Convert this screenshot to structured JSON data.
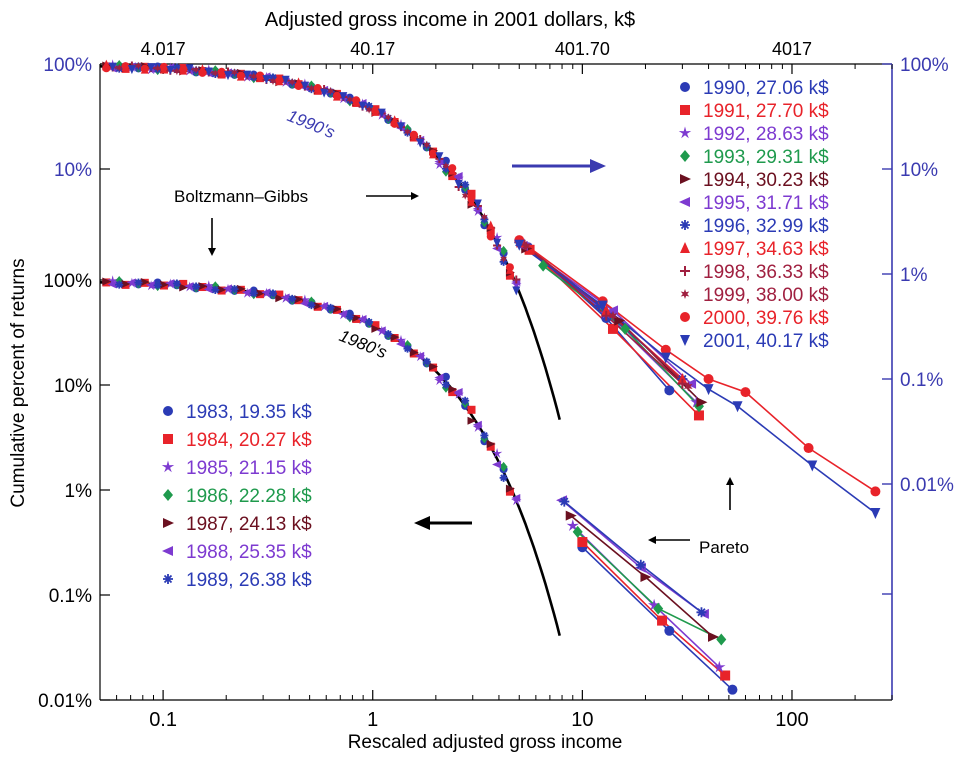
{
  "chart_data": {
    "type": "scatter",
    "title": "Adjusted gross income in 2001 dollars, k$",
    "xlabel": "Rescaled adjusted gross income",
    "ylabel": "Cumulative percent of returns",
    "x_scale": "log",
    "y_scale": "log",
    "xlim": [
      0.05,
      300
    ],
    "x_ticks": [
      "0.1",
      "1",
      "10",
      "100"
    ],
    "x_ticks_values": [
      0.1,
      1,
      10,
      100
    ],
    "top_ticks": [
      "4.017",
      "40.17",
      "401.70",
      "4017"
    ],
    "top_ticks_values": [
      0.1,
      1,
      10,
      100
    ],
    "left_ticks": [
      "100%",
      "10%",
      "1%",
      "0.1%",
      "0.01%"
    ],
    "upper_left_ticks": [
      "100%",
      "10%"
    ],
    "right_ticks": [
      "100%",
      "10%",
      "1%",
      "0.1%",
      "0.01%"
    ],
    "right_ticks_values": [
      100,
      10,
      1,
      0.1,
      0.01
    ],
    "annotations": {
      "decade_1990": "1990's",
      "decade_1980": "1980's",
      "bg_label": "Boltzmann–Gibbs",
      "pareto_label": "Pareto"
    },
    "colors": {
      "axis_left": "#000000",
      "axis_right": "#3a3ab0",
      "fit": "#000000",
      "arrow_right": "#3a3ab0"
    },
    "boltzmann_gibbs": {
      "formula": "exp(-x)",
      "upper_x_range": [
        0.05,
        7.8
      ],
      "lower_x_range": [
        0.05,
        7.8
      ]
    },
    "series_1990s": [
      {
        "name": "1990, 27.06 k$",
        "color": "#2b3bb5",
        "marker": "circle",
        "pareto_x": [
          5.5,
          13,
          26
        ],
        "pareto_y": [
          1.8,
          0.38,
          0.078
        ]
      },
      {
        "name": "1991, 27.70 k$",
        "color": "#e8232a",
        "marker": "square",
        "pareto_x": [
          5.6,
          14,
          36
        ],
        "pareto_y": [
          1.7,
          0.3,
          0.045
        ]
      },
      {
        "name": "1992, 28.63 k$",
        "color": "#7d3ad0",
        "marker": "star",
        "pareto_x": [
          5.3,
          13,
          35
        ],
        "pareto_y": [
          1.9,
          0.42,
          0.06
        ]
      },
      {
        "name": "1993, 29.31 k$",
        "color": "#1f9a4d",
        "marker": "diamond",
        "pareto_x": [
          6.5,
          16,
          36
        ],
        "pareto_y": [
          1.2,
          0.3,
          0.055
        ]
      },
      {
        "name": "1994, 30.23 k$",
        "color": "#6b1020",
        "marker": "triangle-right",
        "pareto_x": [
          5.4,
          15,
          37
        ],
        "pareto_y": [
          1.75,
          0.36,
          0.06
        ]
      },
      {
        "name": "1995, 31.71 k$",
        "color": "#7d3ad0",
        "marker": "triangle-left",
        "pareto_x": [
          5.2,
          14,
          33
        ],
        "pareto_y": [
          1.85,
          0.45,
          0.09
        ]
      },
      {
        "name": "1996, 32.99 k$",
        "color": "#2b3bb5",
        "marker": "asterisk",
        "pareto_x": [
          5.0,
          12,
          30
        ],
        "pareto_y": [
          2.0,
          0.5,
          0.1
        ]
      },
      {
        "name": "1997, 34.63 k$",
        "color": "#e8232a",
        "marker": "triangle-up",
        "pareto_x": [
          5.1,
          13,
          30
        ],
        "pareto_y": [
          2.0,
          0.45,
          0.1
        ]
      },
      {
        "name": "1998, 36.33 k$",
        "color": "#a02040",
        "marker": "plus",
        "pareto_x": [
          5.3,
          13,
          30
        ],
        "pareto_y": [
          1.9,
          0.4,
          0.09
        ]
      },
      {
        "name": "1999, 38.00 k$",
        "color": "#a02040",
        "marker": "star6",
        "pareto_x": [
          5.4,
          14,
          32
        ],
        "pareto_y": [
          1.85,
          0.4,
          0.085
        ]
      },
      {
        "name": "2000, 39.76 k$",
        "color": "#e8232a",
        "marker": "circle",
        "pareto_x": [
          5.0,
          12.5,
          25,
          40,
          60,
          120,
          250
        ],
        "pareto_y": [
          2.1,
          0.55,
          0.19,
          0.1,
          0.075,
          0.022,
          0.0085
        ]
      },
      {
        "name": "2001, 40.17 k$",
        "color": "#2b3bb5",
        "marker": "triangle-down",
        "pareto_x": [
          5.0,
          12.5,
          25,
          40,
          55,
          125,
          250
        ],
        "pareto_y": [
          1.9,
          0.5,
          0.16,
          0.08,
          0.055,
          0.015,
          0.0053
        ]
      }
    ],
    "series_1980s": [
      {
        "name": "1983, 19.35 k$",
        "color": "#2b3bb5",
        "marker": "circle",
        "pareto_x": [
          10,
          26,
          52
        ],
        "pareto_y": [
          0.0025,
          0.0004,
          0.00011
        ]
      },
      {
        "name": "1984, 20.27 k$",
        "color": "#e8232a",
        "marker": "square",
        "pareto_x": [
          10,
          24,
          48
        ],
        "pareto_y": [
          0.0028,
          0.0005,
          0.00015
        ]
      },
      {
        "name": "1985, 21.15 k$",
        "color": "#7d3ad0",
        "marker": "star",
        "pareto_x": [
          9,
          22,
          45
        ],
        "pareto_y": [
          0.004,
          0.0007,
          0.00018
        ]
      },
      {
        "name": "1986, 22.28 k$",
        "color": "#1f9a4d",
        "marker": "diamond",
        "pareto_x": [
          9.5,
          23,
          46
        ],
        "pareto_y": [
          0.0035,
          0.00065,
          0.00033
        ]
      },
      {
        "name": "1987, 24.13 k$",
        "color": "#6b1020",
        "marker": "triangle-right",
        "pareto_x": [
          8.8,
          20,
          42
        ],
        "pareto_y": [
          0.005,
          0.0013,
          0.00035
        ]
      },
      {
        "name": "1988, 25.35 k$",
        "color": "#7d3ad0",
        "marker": "triangle-left",
        "pareto_x": [
          8,
          19,
          38
        ],
        "pareto_y": [
          0.007,
          0.0016,
          0.00058
        ]
      },
      {
        "name": "1989, 26.38 k$",
        "color": "#2b3bb5",
        "marker": "asterisk",
        "pareto_x": [
          8.2,
          19,
          37
        ],
        "pareto_y": [
          0.0068,
          0.0017,
          0.0006
        ]
      }
    ]
  }
}
